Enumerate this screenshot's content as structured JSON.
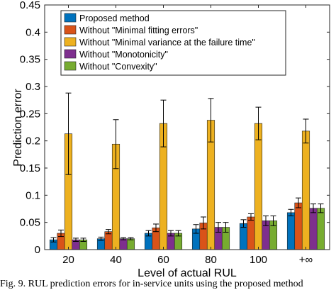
{
  "chart_data": {
    "type": "bar",
    "title": "",
    "xlabel": "Level of actual RUL",
    "ylabel": "Prediction error",
    "ylim": [
      0,
      0.45
    ],
    "yticks": [
      0,
      0.05,
      0.1,
      0.15,
      0.2,
      0.25,
      0.3,
      0.35,
      0.4,
      0.45
    ],
    "ytick_labels": [
      "0",
      "0.05",
      "0.1",
      "0.15",
      "0.2",
      "0.25",
      "0.3",
      "0.35",
      "0.4",
      "0.45"
    ],
    "categories": [
      "20",
      "40",
      "60",
      "80",
      "100",
      "+∞"
    ],
    "grid": false,
    "legend_position": "top-left",
    "error_bars": true,
    "series": [
      {
        "name": "Proposed method",
        "color": "#0072BD",
        "values": [
          0.018,
          0.02,
          0.03,
          0.038,
          0.048,
          0.068
        ],
        "err": [
          0.004,
          0.003,
          0.005,
          0.008,
          0.007,
          0.006
        ]
      },
      {
        "name": "Without \"Minimal fitting errors\"",
        "color": "#D95319",
        "values": [
          0.03,
          0.033,
          0.04,
          0.049,
          0.06,
          0.086
        ],
        "err": [
          0.006,
          0.004,
          0.007,
          0.011,
          0.006,
          0.009
        ]
      },
      {
        "name": "Without \"Minimal variance at the failure time\"",
        "color": "#EDB120",
        "values": [
          0.213,
          0.194,
          0.232,
          0.238,
          0.232,
          0.218
        ],
        "err": [
          0.075,
          0.045,
          0.043,
          0.04,
          0.03,
          0.022
        ]
      },
      {
        "name": "Without \"Monotonicity\"",
        "color": "#7E2F8E",
        "values": [
          0.018,
          0.02,
          0.03,
          0.041,
          0.053,
          0.076
        ],
        "err": [
          0.003,
          0.002,
          0.005,
          0.009,
          0.009,
          0.008
        ]
      },
      {
        "name": "Without \"Convexity\"",
        "color": "#77AC30",
        "values": [
          0.018,
          0.02,
          0.03,
          0.041,
          0.053,
          0.076
        ],
        "err": [
          0.003,
          0.002,
          0.005,
          0.009,
          0.009,
          0.008
        ]
      }
    ]
  },
  "caption": "Fig. 9.  RUL prediction errors for in-service units using the proposed method"
}
